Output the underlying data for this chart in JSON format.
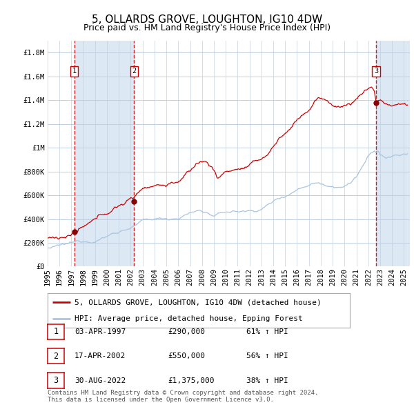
{
  "title": "5, OLLARDS GROVE, LOUGHTON, IG10 4DW",
  "subtitle": "Price paid vs. HM Land Registry's House Price Index (HPI)",
  "legend_line1": "5, OLLARDS GROVE, LOUGHTON, IG10 4DW (detached house)",
  "legend_line2": "HPI: Average price, detached house, Epping Forest",
  "hpi_color": "#aac4e0",
  "price_color": "#cc0000",
  "marker_color": "#880000",
  "background_color": "#ffffff",
  "plot_bg_color": "#ffffff",
  "shaded_region_color": "#dce9f5",
  "grid_color": "#c0d0e0",
  "dashed_line_color": "#cc0000",
  "ylim": [
    0,
    1900000
  ],
  "yticks": [
    0,
    200000,
    400000,
    600000,
    800000,
    1000000,
    1200000,
    1400000,
    1600000,
    1800000
  ],
  "ytick_labels": [
    "£0",
    "£200K",
    "£400K",
    "£600K",
    "£800K",
    "£1M",
    "£1.2M",
    "£1.4M",
    "£1.6M",
    "£1.8M"
  ],
  "xmin": 1995.0,
  "xmax": 2025.5,
  "purchases": [
    {
      "label": "1",
      "date": "1997-04-03",
      "price": 290000,
      "year": 1997.25
    },
    {
      "label": "2",
      "date": "2002-04-17",
      "price": 550000,
      "year": 2002.29
    },
    {
      "label": "3",
      "date": "2022-08-30",
      "price": 1375000,
      "year": 2022.66
    }
  ],
  "shaded_regions": [
    {
      "xmin": 1997.25,
      "xmax": 2002.29
    },
    {
      "xmin": 2022.66,
      "xmax": 2025.5
    }
  ],
  "table_rows": [
    {
      "num": "1",
      "date": "03-APR-1997",
      "price": "£290,000",
      "hpi": "61% ↑ HPI"
    },
    {
      "num": "2",
      "date": "17-APR-2002",
      "price": "£550,000",
      "hpi": "56% ↑ HPI"
    },
    {
      "num": "3",
      "date": "30-AUG-2022",
      "price": "£1,375,000",
      "hpi": "38% ↑ HPI"
    }
  ],
  "footer": "Contains HM Land Registry data © Crown copyright and database right 2024.\nThis data is licensed under the Open Government Licence v3.0.",
  "title_fontsize": 11,
  "subtitle_fontsize": 9,
  "tick_fontsize": 7.5,
  "legend_fontsize": 8,
  "table_fontsize": 8,
  "footer_fontsize": 6.5
}
